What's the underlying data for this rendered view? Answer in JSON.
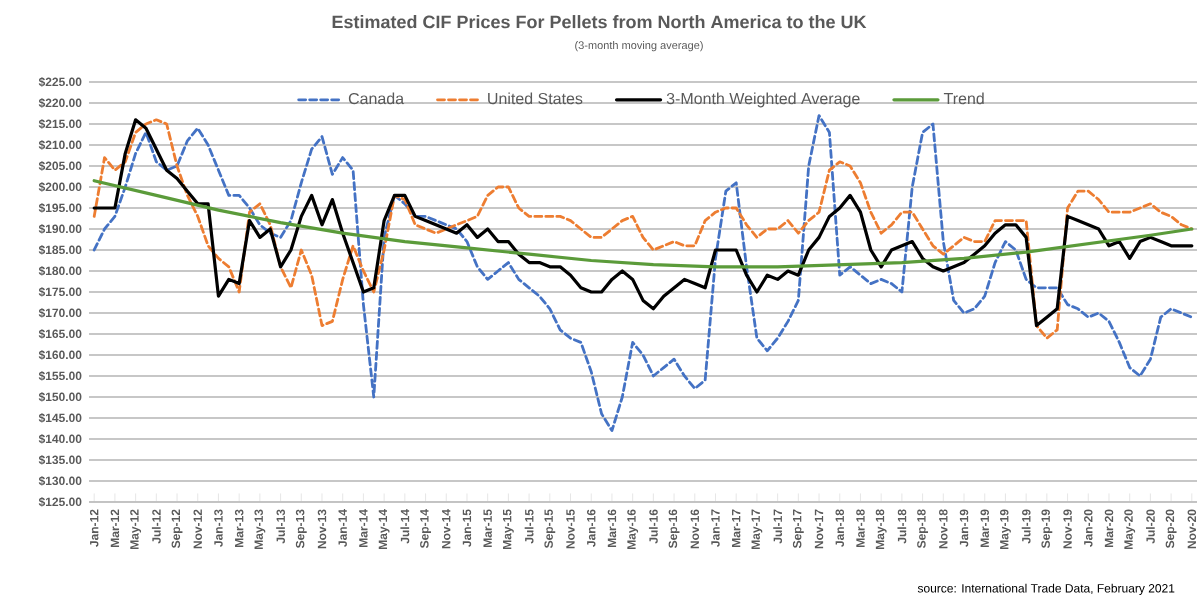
{
  "chart_data": {
    "type": "line",
    "title": "Estimated CIF Prices For Pellets from North America to the UK",
    "subtitle": "(3-month moving average)",
    "categories": [
      "Jan-12",
      null,
      "Mar-12",
      null,
      "May-12",
      null,
      "Jul-12",
      null,
      "Sep-12",
      null,
      "Nov-12",
      null,
      "Jan-13",
      null,
      "Mar-13",
      null,
      "May-13",
      null,
      "Jul-13",
      null,
      "Sep-13",
      null,
      "Nov-13",
      null,
      "Jan-14",
      null,
      "Mar-14",
      null,
      "May-14",
      null,
      "Jul-14",
      null,
      "Sep-14",
      null,
      "Nov-14",
      null,
      "Jan-15",
      null,
      "Mar-15",
      null,
      "May-15",
      null,
      "Jul-15",
      null,
      "Sep-15",
      null,
      "Nov-15",
      null,
      "Jan-16",
      null,
      "Mar-16",
      null,
      "May-16",
      null,
      "Jul-16",
      null,
      "Sep-16",
      null,
      "Nov-16",
      null,
      "Jan-17",
      null,
      "Mar-17",
      null,
      "May-17",
      null,
      "Jul-17",
      null,
      "Sep-17",
      null,
      "Nov-17",
      null,
      "Jan-18",
      null,
      "Mar-18",
      null,
      "May-18",
      null,
      "Jul-18",
      null,
      "Sep-18",
      null,
      "Nov-18",
      null,
      "Jan-19",
      null,
      "Mar-19",
      null,
      "May-19",
      null,
      "Jul-19",
      null,
      "Sep-19",
      null,
      "Nov-19",
      null,
      "Jan-20",
      null,
      "Mar-20",
      null,
      "May-20",
      null,
      "Jul-20",
      null,
      "Sep-20",
      null,
      "Nov-20"
    ],
    "series": [
      {
        "name": "Canada",
        "color": "#4472c4",
        "line_style": "dashed",
        "values": [
          185,
          190,
          193,
          200,
          208,
          213,
          206,
          204,
          205,
          211,
          214,
          210,
          204,
          198,
          198,
          195,
          191,
          189,
          188,
          192,
          201,
          209,
          212,
          203,
          207,
          204,
          172,
          150,
          188,
          198,
          196,
          193,
          193,
          192,
          191,
          190,
          187,
          181,
          178,
          180,
          182,
          178,
          176,
          174,
          171,
          166,
          164,
          163,
          156,
          146,
          142,
          150,
          163,
          160,
          155,
          157,
          159,
          155,
          152,
          154,
          183,
          199,
          201,
          181,
          164,
          161,
          164,
          168,
          173,
          205,
          217,
          213,
          179,
          181,
          179,
          177,
          178,
          177,
          175,
          200,
          213,
          215,
          187,
          173,
          170,
          171,
          174,
          182,
          187,
          185,
          178,
          176,
          176,
          176,
          172,
          171,
          169,
          170,
          168,
          163,
          157,
          155,
          159,
          169,
          171,
          170,
          169
        ]
      },
      {
        "name": "United States",
        "color": "#ed7d31",
        "line_style": "dashed",
        "values": [
          193,
          207,
          204,
          206,
          213,
          215,
          216,
          215,
          205,
          198,
          193,
          186,
          183,
          181,
          175,
          194,
          196,
          191,
          181,
          176,
          185,
          179,
          167,
          168,
          178,
          186,
          180,
          175,
          185,
          198,
          197,
          191,
          190,
          189,
          190,
          191,
          192,
          193,
          198,
          200,
          200,
          195,
          193,
          193,
          193,
          193,
          192,
          190,
          188,
          188,
          190,
          192,
          193,
          188,
          185,
          186,
          187,
          186,
          186,
          192,
          194,
          195,
          195,
          191,
          188,
          190,
          190,
          192,
          189,
          192,
          194,
          204,
          206,
          205,
          201,
          194,
          189,
          191,
          194,
          194,
          190,
          186,
          184,
          186,
          188,
          187,
          187,
          192,
          192,
          192,
          192,
          167,
          164,
          166,
          195,
          199,
          199,
          197,
          194,
          194,
          194,
          195,
          196,
          194,
          193,
          191,
          190
        ]
      },
      {
        "name": "3-Month Weighted Average",
        "color": "#000000",
        "line_style": "solid",
        "values": [
          195,
          195,
          195,
          208,
          216,
          214,
          209,
          204,
          202,
          199,
          196,
          196,
          174,
          178,
          177,
          192,
          188,
          190,
          181,
          185,
          193,
          198,
          191,
          197,
          189,
          182,
          175,
          176,
          192,
          198,
          198,
          193,
          192,
          191,
          190,
          189,
          191,
          188,
          190,
          187,
          187,
          184,
          182,
          182,
          181,
          181,
          179,
          176,
          175,
          175,
          178,
          180,
          178,
          173,
          171,
          174,
          176,
          178,
          177,
          176,
          185,
          185,
          185,
          179,
          175,
          179,
          178,
          180,
          179,
          185,
          188,
          193,
          195,
          198,
          194,
          185,
          181,
          185,
          186,
          187,
          183,
          181,
          180,
          181,
          182,
          184,
          186,
          189,
          191,
          191,
          188,
          167,
          169,
          171,
          193,
          192,
          191,
          190,
          186,
          187,
          183,
          187,
          188,
          187,
          186,
          186,
          186
        ]
      },
      {
        "name": "Trend",
        "color": "#5b9b3a",
        "line_style": "solid",
        "x": [
          "Jan-12",
          "Jul-12",
          "Jan-13",
          "Jul-13",
          "Jan-14",
          "Jul-14",
          "Jan-15",
          "Jul-15",
          "Jan-16",
          "Jul-16",
          "Jan-17",
          "Jul-17",
          "Jan-18",
          "Jul-18",
          "Jan-19",
          "Jul-19",
          "Jan-20",
          "Jul-20",
          "Nov-20"
        ],
        "values": [
          201.5,
          198,
          194.5,
          191.5,
          189,
          187,
          185.5,
          184,
          182.5,
          181.5,
          181,
          181,
          181.5,
          182,
          183,
          184.5,
          186.5,
          188.5,
          190
        ]
      }
    ],
    "ylim": [
      125,
      225
    ],
    "yticks": [
      {
        "value": 125,
        "label": "$125.00"
      },
      {
        "value": 130,
        "label": "$130.00"
      },
      {
        "value": 135,
        "label": "$135.00"
      },
      {
        "value": 140,
        "label": "$140.00"
      },
      {
        "value": 145,
        "label": "$145.00"
      },
      {
        "value": 150,
        "label": "$150.00"
      },
      {
        "value": 155,
        "label": "$155.00"
      },
      {
        "value": 160,
        "label": "$160.00"
      },
      {
        "value": 165,
        "label": "$165.00"
      },
      {
        "value": 170,
        "label": "$170.00"
      },
      {
        "value": 175,
        "label": "$175.00"
      },
      {
        "value": 180,
        "label": "$180.00"
      },
      {
        "value": 185,
        "label": "$185.00"
      },
      {
        "value": 190,
        "label": "$190.00"
      },
      {
        "value": 195,
        "label": "$195.00"
      },
      {
        "value": 200,
        "label": "$200.00"
      },
      {
        "value": 205,
        "label": "$205.00"
      },
      {
        "value": 210,
        "label": "$210.00"
      },
      {
        "value": 215,
        "label": "$215.00"
      },
      {
        "value": 220,
        "label": "$220.00"
      },
      {
        "value": 225,
        "label": "$225.00"
      }
    ],
    "grid": "y",
    "legend": "top",
    "annotations": [
      "source: International Trade Data, February 2021"
    ]
  }
}
